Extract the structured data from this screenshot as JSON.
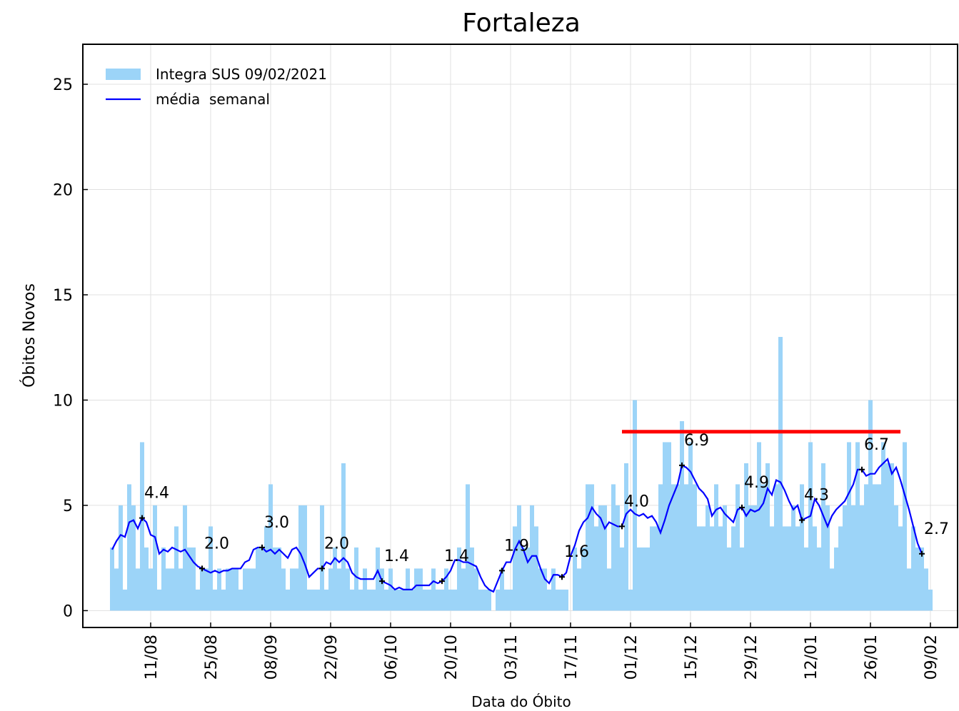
{
  "chart_data": {
    "type": "bar",
    "title": "Fortaleza",
    "xlabel": "Data do Óbito",
    "ylabel": "Óbitos Novos",
    "categories": [
      "02/08",
      "03/08",
      "04/08",
      "05/08",
      "06/08",
      "07/08",
      "08/08",
      "09/08",
      "10/08",
      "11/08",
      "12/08",
      "13/08",
      "14/08",
      "15/08",
      "16/08",
      "17/08",
      "18/08",
      "19/08",
      "20/08",
      "21/08",
      "22/08",
      "23/08",
      "24/08",
      "25/08",
      "26/08",
      "27/08",
      "28/08",
      "29/08",
      "30/08",
      "31/08",
      "01/09",
      "02/09",
      "03/09",
      "04/09",
      "05/09",
      "06/09",
      "07/09",
      "08/09",
      "09/09",
      "10/09",
      "11/09",
      "12/09",
      "13/09",
      "14/09",
      "15/09",
      "16/09",
      "17/09",
      "18/09",
      "19/09",
      "20/09",
      "21/09",
      "22/09",
      "23/09",
      "24/09",
      "25/09",
      "26/09",
      "27/09",
      "28/09",
      "29/09",
      "30/09",
      "01/10",
      "02/10",
      "03/10",
      "04/10",
      "05/10",
      "06/10",
      "07/10",
      "08/10",
      "09/10",
      "10/10",
      "11/10",
      "12/10",
      "13/10",
      "14/10",
      "15/10",
      "16/10",
      "17/10",
      "18/10",
      "19/10",
      "20/10",
      "21/10",
      "22/10",
      "23/10",
      "24/10",
      "25/10",
      "26/10",
      "27/10",
      "28/10",
      "29/10",
      "30/10",
      "31/10",
      "01/11",
      "02/11",
      "03/11",
      "04/11",
      "05/11",
      "06/11",
      "07/11",
      "08/11",
      "09/11",
      "10/11",
      "11/11",
      "12/11",
      "13/11",
      "14/11",
      "15/11",
      "16/11",
      "17/11",
      "18/11",
      "19/11",
      "20/11",
      "21/11",
      "22/11",
      "23/11",
      "24/11",
      "25/11",
      "26/11",
      "27/11",
      "28/11",
      "29/11",
      "30/11",
      "01/12",
      "02/12",
      "03/12",
      "04/12",
      "05/12",
      "06/12",
      "07/12",
      "08/12",
      "09/12",
      "10/12",
      "11/12",
      "12/12",
      "13/12",
      "14/12",
      "15/12",
      "16/12",
      "17/12",
      "18/12",
      "19/12",
      "20/12",
      "21/12",
      "22/12",
      "23/12",
      "24/12",
      "25/12",
      "26/12",
      "27/12",
      "28/12",
      "29/12",
      "30/12",
      "31/12",
      "01/01",
      "02/01",
      "03/01",
      "04/01",
      "05/01",
      "06/01",
      "07/01",
      "08/01",
      "09/01",
      "10/01",
      "11/01",
      "12/01",
      "13/01",
      "14/01",
      "15/01",
      "16/01",
      "17/01",
      "18/01",
      "19/01",
      "20/01",
      "21/01",
      "22/01",
      "23/01",
      "24/01",
      "25/01",
      "26/01",
      "27/01",
      "28/01",
      "29/01",
      "30/01",
      "31/01",
      "01/02",
      "02/02",
      "03/02",
      "04/02",
      "05/02",
      "06/02",
      "07/02",
      "08/02",
      "09/02"
    ],
    "series": [
      {
        "name": "Integra SUS 09/02/2021",
        "type": "bar",
        "color": "#9cd4f8",
        "values": [
          3,
          2,
          5,
          1,
          6,
          5,
          2,
          8,
          3,
          2,
          5,
          1,
          3,
          2,
          2,
          4,
          2,
          5,
          3,
          3,
          1,
          2,
          2,
          4,
          1,
          2,
          1,
          2,
          2,
          2,
          1,
          2,
          2,
          2,
          3,
          3,
          4,
          6,
          3,
          3,
          2,
          1,
          2,
          2,
          5,
          5,
          1,
          1,
          1,
          5,
          1,
          2,
          3,
          2,
          7,
          2,
          1,
          3,
          1,
          2,
          1,
          1,
          3,
          2,
          1,
          2,
          1,
          1,
          1,
          2,
          1,
          2,
          2,
          1,
          1,
          2,
          1,
          1,
          2,
          1,
          1,
          3,
          2,
          6,
          3,
          2,
          1,
          1,
          1,
          0,
          1,
          2,
          1,
          1,
          4,
          5,
          3,
          3,
          5,
          4,
          2,
          2,
          1,
          2,
          1,
          1,
          1,
          0,
          3,
          2,
          3,
          6,
          6,
          4,
          5,
          5,
          2,
          6,
          5,
          3,
          7,
          1,
          10,
          3,
          3,
          3,
          4,
          4,
          6,
          8,
          8,
          6,
          6,
          9,
          6,
          8,
          6,
          4,
          4,
          5,
          4,
          6,
          4,
          5,
          3,
          4,
          6,
          3,
          7,
          5,
          5,
          8,
          6,
          7,
          4,
          6,
          13,
          4,
          4,
          5,
          4,
          6,
          3,
          8,
          4,
          3,
          7,
          5,
          2,
          3,
          4,
          5,
          8,
          5,
          8,
          5,
          6,
          10,
          6,
          6,
          8,
          7,
          7,
          5,
          4,
          8,
          2,
          4,
          3,
          3,
          2,
          1
        ]
      },
      {
        "name": "média  semanal",
        "type": "line",
        "color": "#0000ff",
        "values": [
          2.9,
          3.3,
          3.6,
          3.5,
          4.2,
          4.3,
          3.9,
          4.4,
          4.2,
          3.6,
          3.5,
          2.7,
          2.9,
          2.8,
          3.0,
          2.9,
          2.8,
          2.9,
          2.6,
          2.3,
          2.1,
          2.0,
          1.9,
          1.8,
          1.9,
          1.8,
          1.9,
          1.9,
          2.0,
          2.0,
          2.0,
          2.3,
          2.4,
          2.9,
          3.0,
          3.0,
          2.8,
          2.9,
          2.7,
          2.9,
          2.7,
          2.5,
          2.9,
          3.0,
          2.7,
          2.2,
          1.6,
          1.8,
          2.0,
          2.0,
          2.3,
          2.2,
          2.5,
          2.3,
          2.5,
          2.3,
          1.8,
          1.6,
          1.5,
          1.5,
          1.5,
          1.5,
          1.9,
          1.4,
          1.3,
          1.2,
          1.0,
          1.1,
          1.0,
          1.0,
          1.0,
          1.2,
          1.2,
          1.2,
          1.2,
          1.4,
          1.3,
          1.4,
          1.6,
          1.9,
          2.4,
          2.4,
          2.3,
          2.3,
          2.2,
          2.1,
          1.6,
          1.2,
          1.0,
          0.9,
          1.4,
          1.9,
          2.3,
          2.3,
          2.9,
          3.3,
          2.9,
          2.3,
          2.6,
          2.6,
          2.0,
          1.5,
          1.3,
          1.7,
          1.7,
          1.6,
          1.8,
          2.6,
          3.1,
          3.8,
          4.2,
          4.4,
          4.9,
          4.6,
          4.4,
          3.9,
          4.2,
          4.1,
          4.0,
          4.0,
          4.6,
          4.8,
          4.6,
          4.5,
          4.6,
          4.4,
          4.5,
          4.2,
          3.7,
          4.3,
          5.0,
          5.5,
          6.0,
          6.9,
          6.8,
          6.6,
          6.2,
          5.8,
          5.6,
          5.3,
          4.5,
          4.8,
          4.9,
          4.6,
          4.4,
          4.2,
          4.8,
          4.9,
          4.5,
          4.8,
          4.7,
          4.8,
          5.1,
          5.8,
          5.5,
          6.2,
          6.1,
          5.7,
          5.2,
          4.8,
          5.0,
          4.3,
          4.4,
          4.5,
          5.3,
          5.0,
          4.5,
          4.0,
          4.5,
          4.8,
          5.0,
          5.2,
          5.6,
          6.0,
          6.7,
          6.7,
          6.4,
          6.5,
          6.5,
          6.8,
          7.0,
          7.2,
          6.5,
          6.8,
          6.2,
          5.5,
          4.8,
          4.0,
          3.2,
          2.7,
          null,
          null
        ]
      }
    ],
    "markers": {
      "x": [
        "09/08",
        "23/08",
        "06/09",
        "20/09",
        "04/10",
        "18/10",
        "01/11",
        "15/11",
        "29/11",
        "13/12",
        "27/12",
        "10/01",
        "24/01",
        "07/02"
      ],
      "values": [
        4.4,
        2.0,
        3.0,
        2.0,
        1.4,
        1.4,
        1.9,
        1.6,
        4.0,
        6.9,
        4.9,
        4.3,
        6.7,
        2.7
      ],
      "value_labels": [
        "4.4",
        "2.0",
        "3.0",
        "2.0",
        "1.4",
        "1.4",
        "1.9",
        "1.6",
        "4.0",
        "6.9",
        "4.9",
        "4.3",
        "6.7",
        "2.7"
      ]
    },
    "reference_line": {
      "y": 8.5,
      "x_start": "29/11",
      "x_end": "02/02",
      "color": "#ff0000"
    },
    "xticks": [
      "11/08",
      "25/08",
      "08/09",
      "22/09",
      "06/10",
      "20/10",
      "03/11",
      "17/11",
      "01/12",
      "15/12",
      "29/12",
      "12/01",
      "26/01",
      "09/02"
    ],
    "ylim": [
      -0.8,
      26.9
    ],
    "yticks": [
      0,
      5,
      10,
      15,
      20,
      25
    ],
    "grid": true,
    "legend": "upper left"
  }
}
